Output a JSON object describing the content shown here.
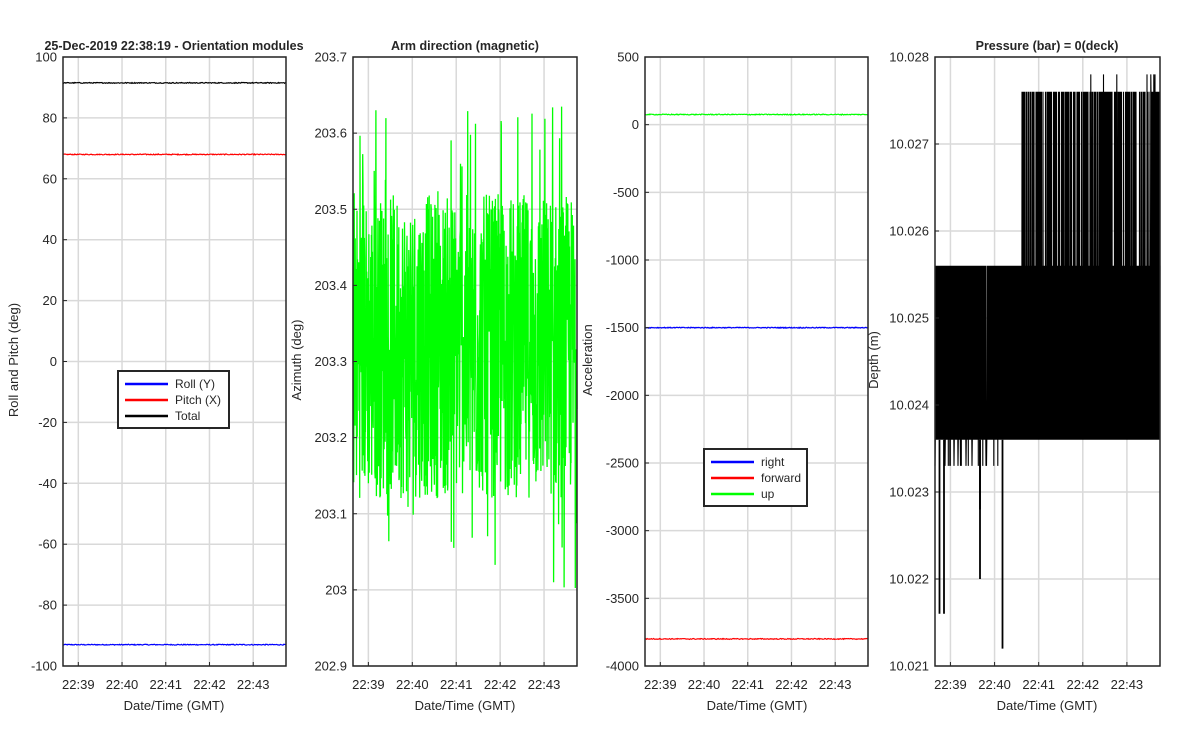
{
  "chart_data": [
    {
      "type": "line",
      "title": "25-Dec-2019 22:38:19 - Orientation modules",
      "xlabel": "Date/Time (GMT)",
      "ylabel": "Roll and Pitch (deg)",
      "x_ticks": [
        "22:39",
        "22:40",
        "22:41",
        "22:42",
        "22:43"
      ],
      "x_range_minutes": [
        0,
        5.1
      ],
      "ylim": [
        -100,
        100
      ],
      "y_ticks": [
        "100",
        "80",
        "60",
        "40",
        "20",
        "0",
        "-20",
        "-40",
        "-60",
        "-80",
        "-100"
      ],
      "grid": true,
      "legend": {
        "placement": "center",
        "entries": [
          "Roll (Y)",
          "Pitch (X)",
          "Total"
        ]
      },
      "series": [
        {
          "name": "Roll (Y)",
          "color": "#0000ff",
          "values_constant": -93
        },
        {
          "name": "Pitch (X)",
          "color": "#ff0000",
          "values_constant": 68
        },
        {
          "name": "Total",
          "color": "#000000",
          "values_constant": 91.5
        }
      ]
    },
    {
      "type": "line",
      "title": "Arm direction (magnetic)",
      "xlabel": "Date/Time (GMT)",
      "ylabel": "Azimuth (deg)",
      "x_ticks": [
        "22:39",
        "22:40",
        "22:41",
        "22:42",
        "22:43"
      ],
      "x_range_minutes": [
        0,
        5.1
      ],
      "ylim": [
        202.9,
        203.7
      ],
      "y_ticks": [
        "203.7",
        "203.6",
        "203.5",
        "203.4",
        "203.3",
        "203.2",
        "203.1",
        "203",
        "202.9"
      ],
      "grid": true,
      "series": [
        {
          "color": "#00ff00",
          "mean": 203.32,
          "spread": 0.2,
          "min": 202.99,
          "max": 203.64
        }
      ]
    },
    {
      "type": "line",
      "title": "",
      "xlabel": "Date/Time (GMT)",
      "ylabel": "Acceleration",
      "x_ticks": [
        "22:39",
        "22:40",
        "22:41",
        "22:42",
        "22:43"
      ],
      "x_range_minutes": [
        0,
        5.1
      ],
      "ylim": [
        -4000,
        500
      ],
      "y_ticks": [
        "500",
        "0",
        "-500",
        "-1000",
        "-1500",
        "-2000",
        "-2500",
        "-3000",
        "-3500",
        "-4000"
      ],
      "grid": true,
      "legend": {
        "placement": "lower-center",
        "entries": [
          "right",
          "forward",
          "up"
        ]
      },
      "series": [
        {
          "name": "right",
          "color": "#0000ff",
          "values_constant": -1500
        },
        {
          "name": "forward",
          "color": "#ff0000",
          "values_constant": -3800
        },
        {
          "name": "up",
          "color": "#00ff00",
          "values_constant": 75
        }
      ]
    },
    {
      "type": "line",
      "title": "Pressure (bar) = 0(deck)",
      "xlabel": "Date/Time (GMT)",
      "ylabel": "Depth (m)",
      "x_ticks": [
        "22:39",
        "22:40",
        "22:41",
        "22:42",
        "22:43"
      ],
      "x_range_minutes": [
        0,
        5.1
      ],
      "ylim": [
        10.021,
        10.028
      ],
      "y_ticks": [
        "10.028",
        "10.027",
        "10.026",
        "10.025",
        "10.024",
        "10.023",
        "10.022",
        "10.021"
      ],
      "grid": true,
      "series": [
        {
          "color": "#000000",
          "low_level": 10.0236,
          "high_level": 10.0256,
          "top_level": 10.0276,
          "max": 10.0278,
          "min": 10.0216
        }
      ]
    }
  ],
  "colors": {
    "axis": "#262626",
    "grid": "#d9d9d9",
    "background": "#ffffff"
  }
}
